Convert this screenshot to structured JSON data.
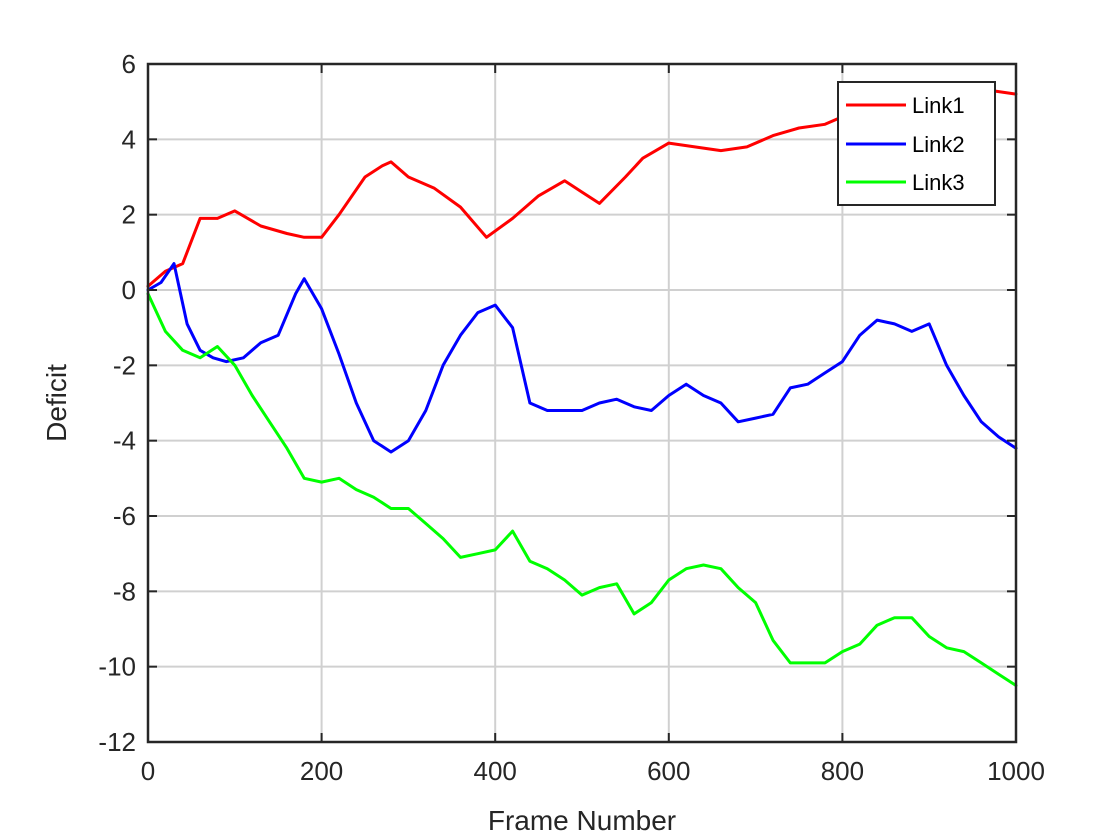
{
  "chart_data": {
    "type": "line",
    "title": "",
    "xlabel": "Frame Number",
    "ylabel": "Deficit",
    "xlim": [
      0,
      1000
    ],
    "ylim": [
      -12,
      6
    ],
    "xticks": [
      0,
      200,
      400,
      600,
      800,
      1000
    ],
    "yticks": [
      -12,
      -10,
      -8,
      -6,
      -4,
      -2,
      0,
      2,
      4,
      6
    ],
    "grid": true,
    "legend_position": "top-right",
    "series": [
      {
        "name": "Link1",
        "color": "#ff0000",
        "x": [
          0,
          20,
          40,
          60,
          80,
          100,
          130,
          160,
          180,
          200,
          220,
          250,
          270,
          280,
          300,
          330,
          360,
          390,
          420,
          450,
          480,
          500,
          520,
          550,
          570,
          600,
          630,
          660,
          690,
          720,
          750,
          780,
          800,
          820,
          850,
          880,
          910,
          940,
          970,
          1000
        ],
        "y": [
          0.1,
          0.5,
          0.7,
          1.9,
          1.9,
          2.1,
          1.7,
          1.5,
          1.4,
          1.4,
          2.0,
          3.0,
          3.3,
          3.4,
          3.0,
          2.7,
          2.2,
          1.4,
          1.9,
          2.5,
          2.9,
          2.6,
          2.3,
          3.0,
          3.5,
          3.9,
          3.8,
          3.7,
          3.8,
          4.1,
          4.3,
          4.4,
          4.6,
          4.8,
          5.0,
          5.2,
          5.1,
          5.3,
          5.3,
          5.2
        ]
      },
      {
        "name": "Link2",
        "color": "#0000ff",
        "x": [
          0,
          15,
          30,
          45,
          60,
          75,
          90,
          110,
          130,
          150,
          170,
          180,
          200,
          220,
          240,
          260,
          280,
          300,
          320,
          340,
          360,
          380,
          400,
          420,
          440,
          460,
          480,
          500,
          520,
          540,
          560,
          580,
          600,
          620,
          640,
          660,
          680,
          700,
          720,
          740,
          760,
          780,
          800,
          820,
          840,
          860,
          880,
          900,
          920,
          940,
          960,
          980,
          1000
        ],
        "y": [
          0.0,
          0.2,
          0.7,
          -0.9,
          -1.6,
          -1.8,
          -1.9,
          -1.8,
          -1.4,
          -1.2,
          -0.1,
          0.3,
          -0.5,
          -1.7,
          -3.0,
          -4.0,
          -4.3,
          -4.0,
          -3.2,
          -2.0,
          -1.2,
          -0.6,
          -0.4,
          -1.0,
          -3.0,
          -3.2,
          -3.2,
          -3.2,
          -3.0,
          -2.9,
          -3.1,
          -3.2,
          -2.8,
          -2.5,
          -2.8,
          -3.0,
          -3.5,
          -3.4,
          -3.3,
          -2.6,
          -2.5,
          -2.2,
          -1.9,
          -1.2,
          -0.8,
          -0.9,
          -1.1,
          -0.9,
          -2.0,
          -2.8,
          -3.5,
          -3.9,
          -4.2
        ]
      },
      {
        "name": "Link3",
        "color": "#00ff00",
        "x": [
          0,
          20,
          40,
          60,
          80,
          100,
          120,
          140,
          160,
          180,
          200,
          220,
          240,
          260,
          280,
          300,
          320,
          340,
          360,
          380,
          400,
          420,
          440,
          460,
          480,
          500,
          520,
          540,
          560,
          580,
          600,
          620,
          640,
          660,
          680,
          700,
          720,
          740,
          760,
          780,
          800,
          820,
          840,
          860,
          880,
          900,
          920,
          940,
          960,
          980,
          1000
        ],
        "y": [
          -0.1,
          -1.1,
          -1.6,
          -1.8,
          -1.5,
          -2.0,
          -2.8,
          -3.5,
          -4.2,
          -5.0,
          -5.1,
          -5.0,
          -5.3,
          -5.5,
          -5.8,
          -5.8,
          -6.2,
          -6.6,
          -7.1,
          -7.0,
          -6.9,
          -6.4,
          -7.2,
          -7.4,
          -7.7,
          -8.1,
          -7.9,
          -7.8,
          -8.6,
          -8.3,
          -7.7,
          -7.4,
          -7.3,
          -7.4,
          -7.9,
          -8.3,
          -9.3,
          -9.9,
          -9.9,
          -9.9,
          -9.6,
          -9.4,
          -8.9,
          -8.7,
          -8.7,
          -9.2,
          -9.5,
          -9.6,
          -9.9,
          -10.2,
          -10.5
        ]
      }
    ]
  }
}
